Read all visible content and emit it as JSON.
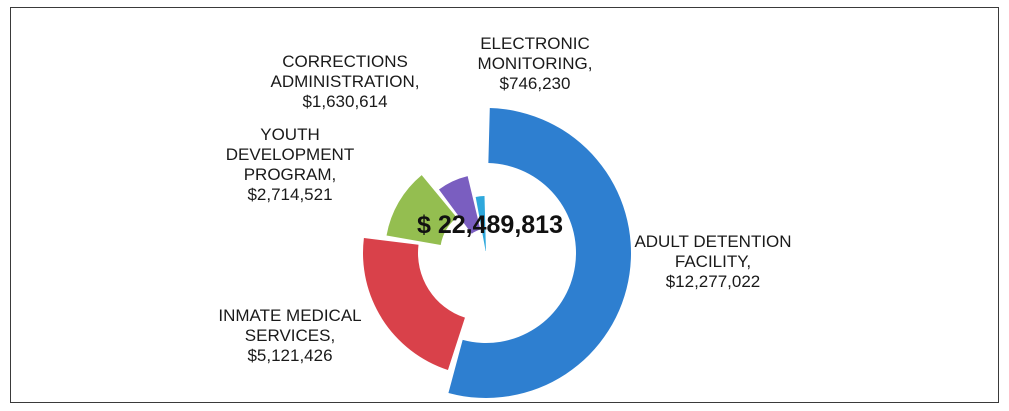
{
  "chart_data": {
    "type": "pie",
    "total_label": "$ 22,489,813",
    "slices": [
      {
        "category": "ADULT DETENTION FACILITY",
        "value": 12277022,
        "label_lines": [
          "ADULT DETENTION",
          "FACILITY,",
          "$12,277,022"
        ],
        "color": "#2e7fd0"
      },
      {
        "category": "INMATE MEDICAL SERVICES",
        "value": 5121426,
        "label_lines": [
          "INMATE MEDICAL",
          "SERVICES,",
          "$5,121,426"
        ],
        "color": "#d9414a"
      },
      {
        "category": "YOUTH DEVELOPMENT PROGRAM",
        "value": 2714521,
        "label_lines": [
          "YOUTH",
          "DEVELOPMENT",
          "PROGRAM,",
          "$2,714,521"
        ],
        "color": "#94be50"
      },
      {
        "category": "CORRECTIONS ADMINISTRATION",
        "value": 1630614,
        "label_lines": [
          "CORRECTIONS",
          "ADMINISTRATION,",
          "$1,630,614"
        ],
        "color": "#7a5ec0"
      },
      {
        "category": "ELECTRONIC MONITORING",
        "value": 746230,
        "label_lines": [
          "ELECTRONIC",
          "MONITORING,",
          "$746,230"
        ],
        "color": "#2ea8dc"
      }
    ]
  }
}
